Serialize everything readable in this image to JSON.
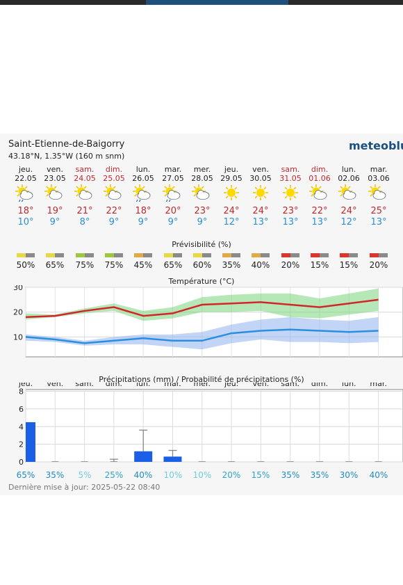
{
  "header": {
    "place": "Saint-Etienne-de-Baigorry",
    "coords": "43.18°N, 1.35°W (160 m snm)",
    "brand": "meteoblu"
  },
  "sections": {
    "predictability": "Prévisibilité (%)",
    "temperature": "Température (°C)",
    "precipitation": "Précipitations (mm) / Probabilité de précipitations (%)"
  },
  "days": [
    {
      "name": "jeu.",
      "date": "22.05",
      "weekend": false,
      "icon": "sun-cloud-rain-icon",
      "tmax": "18°",
      "tmin": "10°",
      "pred": "50%",
      "pred_color": "#e5d94a",
      "precip_prob": "65%"
    },
    {
      "name": "ven.",
      "date": "23.05",
      "weekend": false,
      "icon": "sun-cloud-icon",
      "tmax": "19°",
      "tmin": "9°",
      "pred": "65%",
      "pred_color": "#e5d94a",
      "precip_prob": "35%"
    },
    {
      "name": "sam.",
      "date": "24.05",
      "weekend": true,
      "icon": "sun-cloud-icon",
      "tmax": "21°",
      "tmin": "8°",
      "pred": "75%",
      "pred_color": "#9ec640",
      "precip_prob": "5%"
    },
    {
      "name": "dim.",
      "date": "25.05",
      "weekend": true,
      "icon": "sun-cloud-icon",
      "tmax": "22°",
      "tmin": "9°",
      "pred": "75%",
      "pred_color": "#9ec640",
      "precip_prob": "25%"
    },
    {
      "name": "lun.",
      "date": "26.05",
      "weekend": false,
      "icon": "sun-cloud-rain-icon",
      "tmax": "18°",
      "tmin": "9°",
      "pred": "45%",
      "pred_color": "#e0a94a",
      "precip_prob": "40%"
    },
    {
      "name": "mar.",
      "date": "27.05",
      "weekend": false,
      "icon": "sun-cloud-rain-icon",
      "tmax": "20°",
      "tmin": "9°",
      "pred": "65%",
      "pred_color": "#e5d94a",
      "precip_prob": "10%"
    },
    {
      "name": "mer.",
      "date": "28.05",
      "weekend": false,
      "icon": "sun-cloud-icon",
      "tmax": "23°",
      "tmin": "9°",
      "pred": "60%",
      "pred_color": "#e5d94a",
      "precip_prob": "10%"
    },
    {
      "name": "jeu.",
      "date": "29.05",
      "weekend": false,
      "icon": "sun-icon",
      "tmax": "24°",
      "tmin": "12°",
      "pred": "35%",
      "pred_color": "#e0a94a",
      "precip_prob": "20%"
    },
    {
      "name": "ven.",
      "date": "30.05",
      "weekend": false,
      "icon": "sun-icon",
      "tmax": "24°",
      "tmin": "13°",
      "pred": "40%",
      "pred_color": "#e0a94a",
      "precip_prob": "15%"
    },
    {
      "name": "sam.",
      "date": "31.05",
      "weekend": true,
      "icon": "sun-icon",
      "tmax": "23°",
      "tmin": "13°",
      "pred": "20%",
      "pred_color": "#d9362c",
      "precip_prob": "35%"
    },
    {
      "name": "dim.",
      "date": "01.06",
      "weekend": true,
      "icon": "sun-cloud-icon",
      "tmax": "22°",
      "tmin": "13°",
      "pred": "15%",
      "pred_color": "#d9362c",
      "precip_prob": "35%"
    },
    {
      "name": "lun.",
      "date": "02.06",
      "weekend": false,
      "icon": "sun-cloud-icon",
      "tmax": "24°",
      "tmin": "12°",
      "pred": "15%",
      "pred_color": "#d9362c",
      "precip_prob": "30%"
    },
    {
      "name": "mar.",
      "date": "03.06",
      "weekend": false,
      "icon": "sun-cloud-icon",
      "tmax": "25°",
      "tmin": "13°",
      "pred": "20%",
      "pred_color": "#d9362c",
      "precip_prob": "40%"
    }
  ],
  "temperature_chart": {
    "y_ticks": [
      "10",
      "20",
      "30"
    ],
    "max": [
      18,
      18.5,
      20.5,
      22,
      18.5,
      19.5,
      23,
      23.5,
      24,
      23,
      22,
      23.5,
      25
    ],
    "min": [
      10,
      9,
      7.5,
      8.5,
      9.5,
      8.5,
      8.5,
      11.5,
      12.5,
      13,
      12.5,
      12,
      12.5
    ],
    "max_band_low": [
      17,
      18,
      19.5,
      20.5,
      16.5,
      17.5,
      20,
      20,
      20.5,
      18,
      17.5,
      19,
      20.5
    ],
    "max_band_high": [
      19.5,
      19,
      21.5,
      23.5,
      20.5,
      22,
      26,
      27,
      27.5,
      27.5,
      25.5,
      27.5,
      29.5
    ],
    "min_band_low": [
      8.5,
      8,
      6.5,
      7,
      7,
      6,
      5,
      7.5,
      9,
      8,
      8,
      7.5,
      8
    ],
    "min_band_high": [
      11,
      10,
      8.5,
      10,
      11,
      11,
      12,
      15,
      17,
      18,
      17,
      16.5,
      18
    ]
  },
  "precip_chart": {
    "y_ticks": [
      "0",
      "2",
      "4",
      "6",
      "8"
    ],
    "x_labels": [
      "jeu.",
      "ven.",
      "sam.",
      "dim.",
      "lun.",
      "mar.",
      "mer.",
      "jeu.",
      "ven.",
      "sam.",
      "dim.",
      "lun.",
      "mar."
    ],
    "amounts": [
      4.5,
      0,
      0,
      0,
      1.2,
      0.6,
      0,
      0,
      0,
      0,
      0,
      0,
      0
    ],
    "error_high": [
      null,
      null,
      null,
      0.3,
      3.6,
      1.3,
      null,
      null,
      null,
      null,
      null,
      null,
      null
    ]
  },
  "footer": {
    "updated": "Dernière mise à jour: 2025-05-22 08:40"
  }
}
